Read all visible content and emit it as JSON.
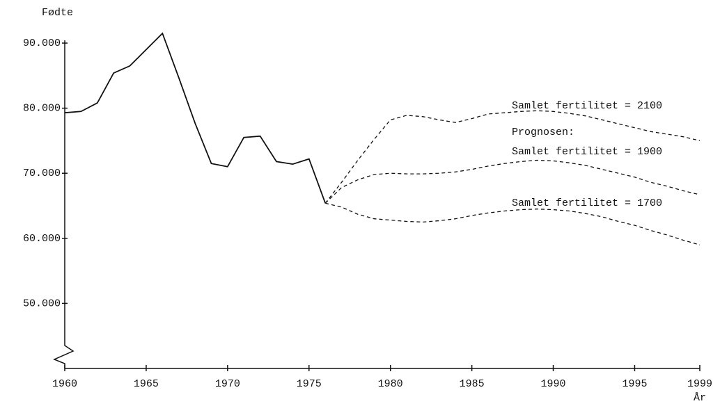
{
  "chart_data": {
    "type": "line",
    "y_label": "Fødte",
    "x_label": "År",
    "annotation": "Prognosen:",
    "xlim": [
      1960,
      1999
    ],
    "xticks": [
      1960,
      1965,
      1970,
      1975,
      1980,
      1985,
      1990,
      1995,
      1999
    ],
    "ylim": [
      40000,
      90000
    ],
    "yticks": [
      {
        "value": 50000,
        "label": "50.000"
      },
      {
        "value": 60000,
        "label": "60.000"
      },
      {
        "value": 70000,
        "label": "70.000"
      },
      {
        "value": 80000,
        "label": "80.000"
      },
      {
        "value": 90000,
        "label": "90.000"
      }
    ],
    "series": [
      {
        "color": "#111111",
        "dashed": false,
        "x": [
          1960,
          1961,
          1962,
          1963,
          1964,
          1965,
          1966,
          1967,
          1968,
          1969,
          1970,
          1971,
          1972,
          1973,
          1974,
          1975,
          1976
        ],
        "values": [
          79300,
          79500,
          80800,
          85400,
          86500,
          89000,
          91500,
          84700,
          77700,
          71500,
          71000,
          75500,
          75700,
          71800,
          71400,
          72200,
          65400
        ]
      },
      {
        "name": "Samlet fertilitet = 2100",
        "color": "#111111",
        "dashed": true,
        "x": [
          1976,
          1977,
          1978,
          1979,
          1980,
          1981,
          1982,
          1983,
          1984,
          1985,
          1986,
          1987,
          1988,
          1989,
          1990,
          1991,
          1992,
          1993,
          1994,
          1995,
          1996,
          1997,
          1998,
          1999
        ],
        "values": [
          65400,
          68600,
          72000,
          75200,
          78200,
          78900,
          78700,
          78200,
          77800,
          78400,
          79100,
          79300,
          79500,
          79600,
          79500,
          79200,
          78800,
          78200,
          77600,
          77000,
          76400,
          76000,
          75600,
          75000
        ]
      },
      {
        "name": "Samlet fertilitet = 1900",
        "color": "#111111",
        "dashed": true,
        "x": [
          1976,
          1977,
          1978,
          1979,
          1980,
          1981,
          1982,
          1983,
          1984,
          1985,
          1986,
          1987,
          1988,
          1989,
          1990,
          1991,
          1992,
          1993,
          1994,
          1995,
          1996,
          1997,
          1998,
          1999
        ],
        "values": [
          65400,
          67800,
          69000,
          69800,
          70000,
          69900,
          69900,
          70000,
          70200,
          70600,
          71100,
          71500,
          71800,
          72000,
          71900,
          71600,
          71200,
          70600,
          70000,
          69400,
          68600,
          68000,
          67300,
          66700
        ]
      },
      {
        "name": "Samlet fertilitet = 1700",
        "color": "#111111",
        "dashed": true,
        "x": [
          1976,
          1977,
          1978,
          1979,
          1980,
          1981,
          1982,
          1983,
          1984,
          1985,
          1986,
          1987,
          1988,
          1989,
          1990,
          1991,
          1992,
          1993,
          1994,
          1995,
          1996,
          1997,
          1998,
          1999
        ],
        "values": [
          65400,
          64800,
          63700,
          63000,
          62800,
          62600,
          62500,
          62700,
          63000,
          63500,
          63900,
          64200,
          64400,
          64500,
          64400,
          64200,
          63800,
          63300,
          62600,
          62000,
          61200,
          60500,
          59700,
          59000
        ]
      }
    ]
  }
}
